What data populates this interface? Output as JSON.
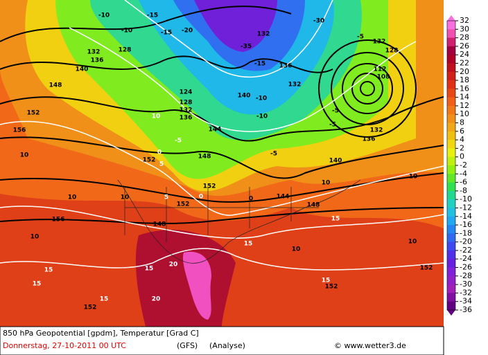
{
  "colorbar": {
    "ticks": [
      32,
      30,
      28,
      26,
      24,
      22,
      20,
      18,
      16,
      14,
      12,
      10,
      8,
      6,
      4,
      2,
      0,
      -2,
      -4,
      -6,
      -8,
      -10,
      -12,
      -14,
      -16,
      -18,
      -20,
      -22,
      -24,
      -26,
      -28,
      -30,
      -32,
      -34,
      -36
    ],
    "colors": [
      "#f870e0",
      "#f050b0",
      "#d02070",
      "#a00040",
      "#b00028",
      "#c01020",
      "#d02018",
      "#e03018",
      "#e84818",
      "#f06018",
      "#f07818",
      "#f09018",
      "#f0a818",
      "#f0c010",
      "#f0d810",
      "#e8f010",
      "#c0f010",
      "#90f010",
      "#60e828",
      "#30e050",
      "#20d890",
      "#20d0c0",
      "#20c0e0",
      "#20a8f0",
      "#2088f0",
      "#3068f0",
      "#4048f0",
      "#5030e8",
      "#6820e0",
      "#8020d8",
      "#9020c8",
      "#a020b8",
      "#8010a0",
      "#600080"
    ]
  },
  "footer": {
    "line1": "850 hPa Geopotential [gpdm], Temperatur [Grad C]",
    "date": "Donnerstag, 27-10-2011  00 UTC",
    "model": "(GFS)",
    "run": "(Analyse)",
    "credit": "© www.wetter3.de"
  },
  "contour_labels": [
    "-10",
    "-10",
    "-15",
    "-15",
    "-20",
    "-35",
    "-30",
    "-15",
    "132",
    "128",
    "132",
    "136",
    "140",
    "148",
    "152",
    "156",
    "124",
    "128",
    "132",
    "136",
    "140",
    "144",
    "148",
    "152",
    "152",
    "152",
    "148",
    "156",
    "152",
    "152",
    "152",
    "148",
    "144",
    "140",
    "136",
    "132",
    "128",
    "112",
    "108",
    "132",
    "136",
    "132",
    "-10",
    "-10",
    "-5",
    "-5",
    "-5",
    "0",
    "10",
    "10",
    "10",
    "10",
    "10",
    "10",
    "10",
    "10",
    "15",
    "15",
    "15",
    "15",
    "15",
    "15",
    "20",
    "20",
    "15",
    "0",
    "5",
    "5",
    "0",
    "-5",
    "10",
    "-5"
  ]
}
